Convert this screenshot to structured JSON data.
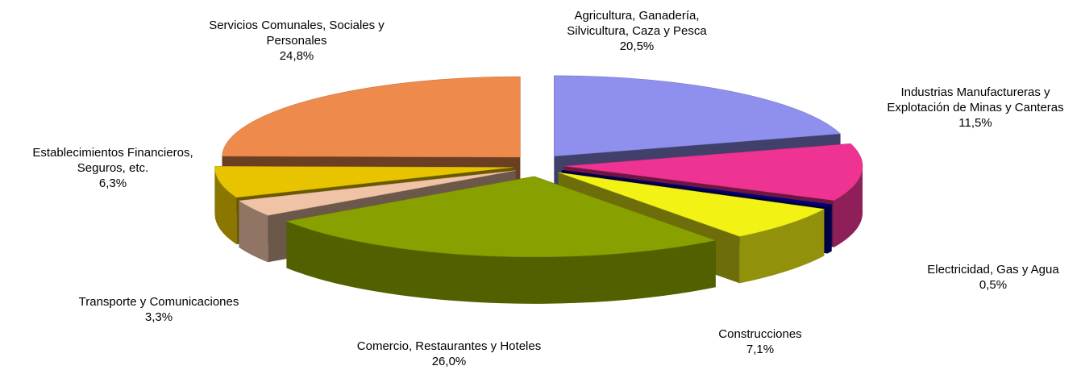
{
  "chart_data": {
    "type": "pie3d",
    "categories": [
      "Agricultura, Ganadería, Silvicultura, Caza y Pesca",
      "Industrias Manufactureras y Explotación de Minas y Canteras",
      "Electricidad, Gas y Agua",
      "Construcciones",
      "Comercio, Restaurantes y Hoteles",
      "Transporte y Comunicaciones",
      "Establecimientos Financieros, Seguros, etc.",
      "Servicios Comunales, Sociales y Personales"
    ],
    "values": [
      20.5,
      11.5,
      0.5,
      7.1,
      26.0,
      3.3,
      6.3,
      24.8
    ],
    "value_labels": [
      "20,5%",
      "11,5%",
      "0,5%",
      "7,1%",
      "26,0%",
      "3,3%",
      "6,3%",
      "24,8%"
    ],
    "colors": [
      "#8f8fee",
      "#ee3392",
      "#000080",
      "#f2f214",
      "#88a000",
      "#f0c2a6",
      "#e8c400",
      "#ee8b4c"
    ]
  }
}
